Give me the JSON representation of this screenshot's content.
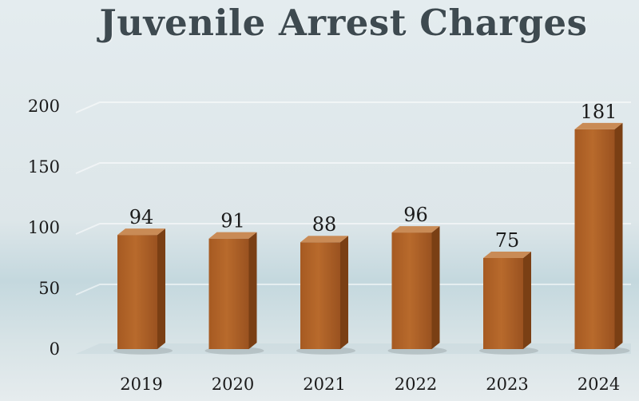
{
  "chart_data": {
    "type": "bar",
    "title": "Juvenile Arrest Charges",
    "xlabel": "",
    "ylabel": "",
    "categories": [
      "2019",
      "2020",
      "2021",
      "2022",
      "2023",
      "2024"
    ],
    "values": [
      94,
      91,
      88,
      96,
      75,
      181
    ],
    "data_labels": [
      "94",
      "91",
      "88",
      "96",
      "75",
      "181"
    ],
    "ylim": [
      0,
      200
    ],
    "yticks": [
      "0",
      "50",
      "100",
      "150",
      "200"
    ],
    "grid": true,
    "legend": "none",
    "colors": {
      "bar_front": "#b86a2c",
      "bar_side": "#7a3f14",
      "bar_top": "#c98b56",
      "text": "#1a1a1a",
      "title": "#3e4a50"
    }
  }
}
